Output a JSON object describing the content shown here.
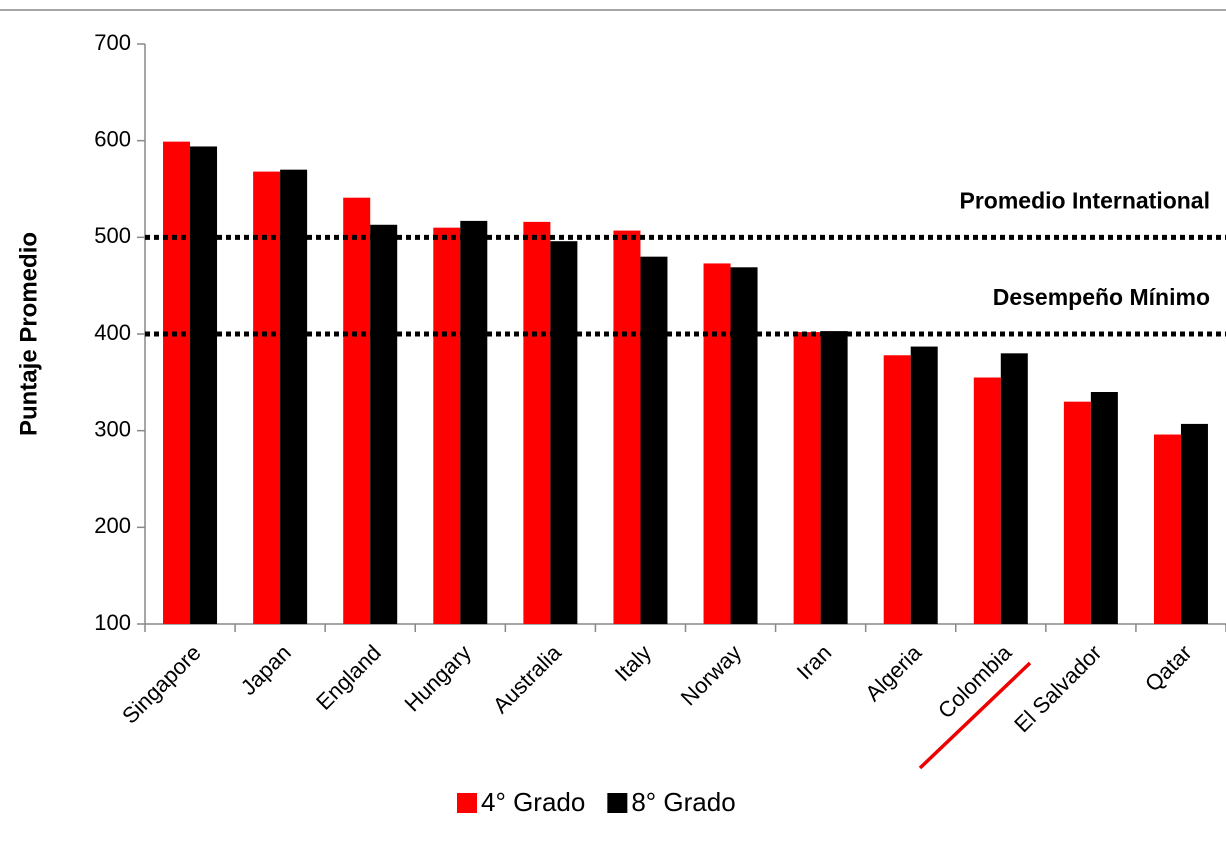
{
  "chart_data": {
    "type": "bar",
    "y_axis_label": "Puntaje Promedio",
    "categories": [
      "Singapore",
      "Japan",
      "England",
      "Hungary",
      "Australia",
      "Italy",
      "Norway",
      "Iran",
      "Algeria",
      "Colombia",
      "El Salvador",
      "Qatar"
    ],
    "series": [
      {
        "name": "4° Grado",
        "color": "#ff0000",
        "values": [
          599,
          568,
          541,
          510,
          516,
          507,
          473,
          402,
          378,
          355,
          330,
          296
        ]
      },
      {
        "name": "8° Grado",
        "color": "#000000",
        "values": [
          594,
          570,
          513,
          517,
          496,
          480,
          469,
          403,
          387,
          380,
          340,
          307
        ]
      }
    ],
    "ylim": [
      100,
      700
    ],
    "yticks": [
      100,
      200,
      300,
      400,
      500,
      600,
      700
    ],
    "reference_lines": [
      {
        "value": 500,
        "label": "Promedio International"
      },
      {
        "value": 400,
        "label": "Desempeño Mínimo"
      }
    ],
    "legend": "bottom"
  }
}
